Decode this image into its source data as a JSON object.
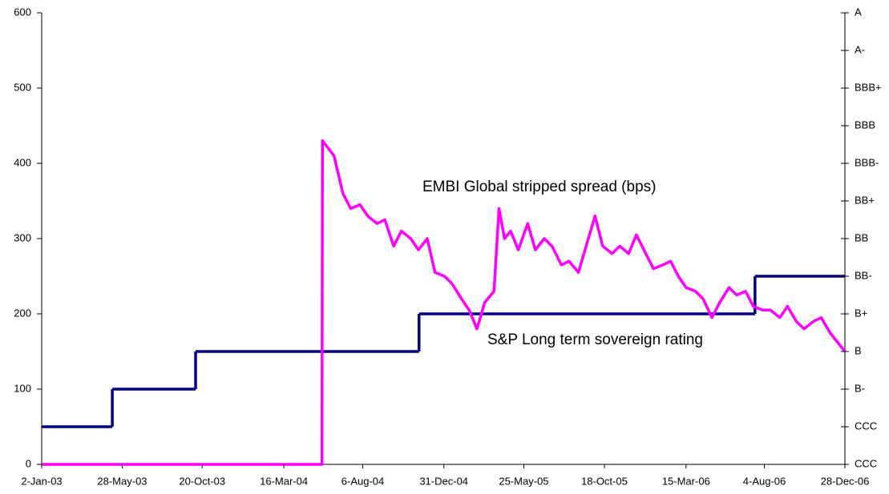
{
  "chart_data": {
    "type": "line",
    "annotations": [
      "EMBI Global stripped spread (bps)",
      "S&P Long term sovereign rating"
    ],
    "xlim": [
      "2003-01-02",
      "2006-12-28"
    ],
    "xticks": [
      {
        "value": "2003-01-02",
        "label": "2-Jan-03"
      },
      {
        "value": "2003-05-28",
        "label": "28-May-03"
      },
      {
        "value": "2003-10-20",
        "label": "20-Oct-03"
      },
      {
        "value": "2004-03-16",
        "label": "16-Mar-04"
      },
      {
        "value": "2004-08-06",
        "label": "6-Aug-04"
      },
      {
        "value": "2004-12-31",
        "label": "31-Dec-04"
      },
      {
        "value": "2005-05-25",
        "label": "25-May-05"
      },
      {
        "value": "2005-10-18",
        "label": "18-Oct-05"
      },
      {
        "value": "2006-03-15",
        "label": "15-Mar-06"
      },
      {
        "value": "2006-08-04",
        "label": "4-Aug-06"
      },
      {
        "value": "2006-12-28",
        "label": "28-Dec-06"
      }
    ],
    "ylim": [
      0,
      600
    ],
    "yticks": [
      0,
      100,
      200,
      300,
      400,
      500,
      600
    ],
    "y2lim": [
      0,
      600
    ],
    "y2ticks": [
      {
        "value": 0,
        "label": "CCC"
      },
      {
        "value": 50,
        "label": "CCC"
      },
      {
        "value": 100,
        "label": "B-"
      },
      {
        "value": 150,
        "label": "B"
      },
      {
        "value": 200,
        "label": "B+"
      },
      {
        "value": 250,
        "label": "BB-"
      },
      {
        "value": 300,
        "label": "BB"
      },
      {
        "value": 350,
        "label": "BB+"
      },
      {
        "value": 400,
        "label": "BBB-"
      },
      {
        "value": 450,
        "label": "BBB"
      },
      {
        "value": 500,
        "label": "BBB+"
      },
      {
        "value": 550,
        "label": "A-"
      },
      {
        "value": 600,
        "label": "A"
      }
    ],
    "series": [
      {
        "color": "#000080",
        "axis": "y2",
        "step": true,
        "x": [
          "2003-01-02",
          "2003-05-10",
          "2003-10-08",
          "2004-11-16",
          "2006-07-18",
          "2006-12-28"
        ],
        "values": [
          50,
          100,
          150,
          200,
          250,
          250
        ]
      },
      {
        "color": "#ff00ff",
        "axis": "y",
        "x": [
          "2003-01-02",
          "2004-05-24",
          "2004-05-25",
          "2004-06-15",
          "2004-07-01",
          "2004-07-15",
          "2004-08-01",
          "2004-08-15",
          "2004-09-01",
          "2004-09-15",
          "2004-10-01",
          "2004-10-15",
          "2004-11-01",
          "2004-11-15",
          "2004-12-01",
          "2004-12-15",
          "2005-01-01",
          "2005-01-15",
          "2005-02-01",
          "2005-02-15",
          "2005-03-01",
          "2005-03-15",
          "2005-04-01",
          "2005-04-10",
          "2005-04-20",
          "2005-05-01",
          "2005-05-15",
          "2005-06-01",
          "2005-06-15",
          "2005-07-01",
          "2005-07-15",
          "2005-08-01",
          "2005-08-15",
          "2005-09-01",
          "2005-09-15",
          "2005-10-01",
          "2005-10-15",
          "2005-11-01",
          "2005-11-15",
          "2005-12-01",
          "2005-12-15",
          "2006-01-01",
          "2006-01-15",
          "2006-02-01",
          "2006-02-15",
          "2006-03-01",
          "2006-03-15",
          "2006-04-01",
          "2006-04-15",
          "2006-05-01",
          "2006-05-15",
          "2006-06-01",
          "2006-06-15",
          "2006-07-01",
          "2006-07-15",
          "2006-08-01",
          "2006-08-15",
          "2006-09-01",
          "2006-09-15",
          "2006-10-01",
          "2006-10-15",
          "2006-11-01",
          "2006-11-15",
          "2006-12-01",
          "2006-12-28"
        ],
        "values": [
          0,
          0,
          430,
          410,
          360,
          340,
          345,
          330,
          320,
          325,
          290,
          310,
          300,
          285,
          300,
          255,
          250,
          240,
          220,
          205,
          180,
          215,
          230,
          340,
          300,
          310,
          285,
          320,
          285,
          300,
          290,
          265,
          270,
          255,
          290,
          330,
          290,
          280,
          290,
          280,
          305,
          280,
          260,
          265,
          270,
          250,
          235,
          230,
          220,
          195,
          215,
          235,
          225,
          230,
          210,
          205,
          205,
          195,
          210,
          190,
          180,
          190,
          195,
          175,
          150
        ]
      }
    ]
  }
}
